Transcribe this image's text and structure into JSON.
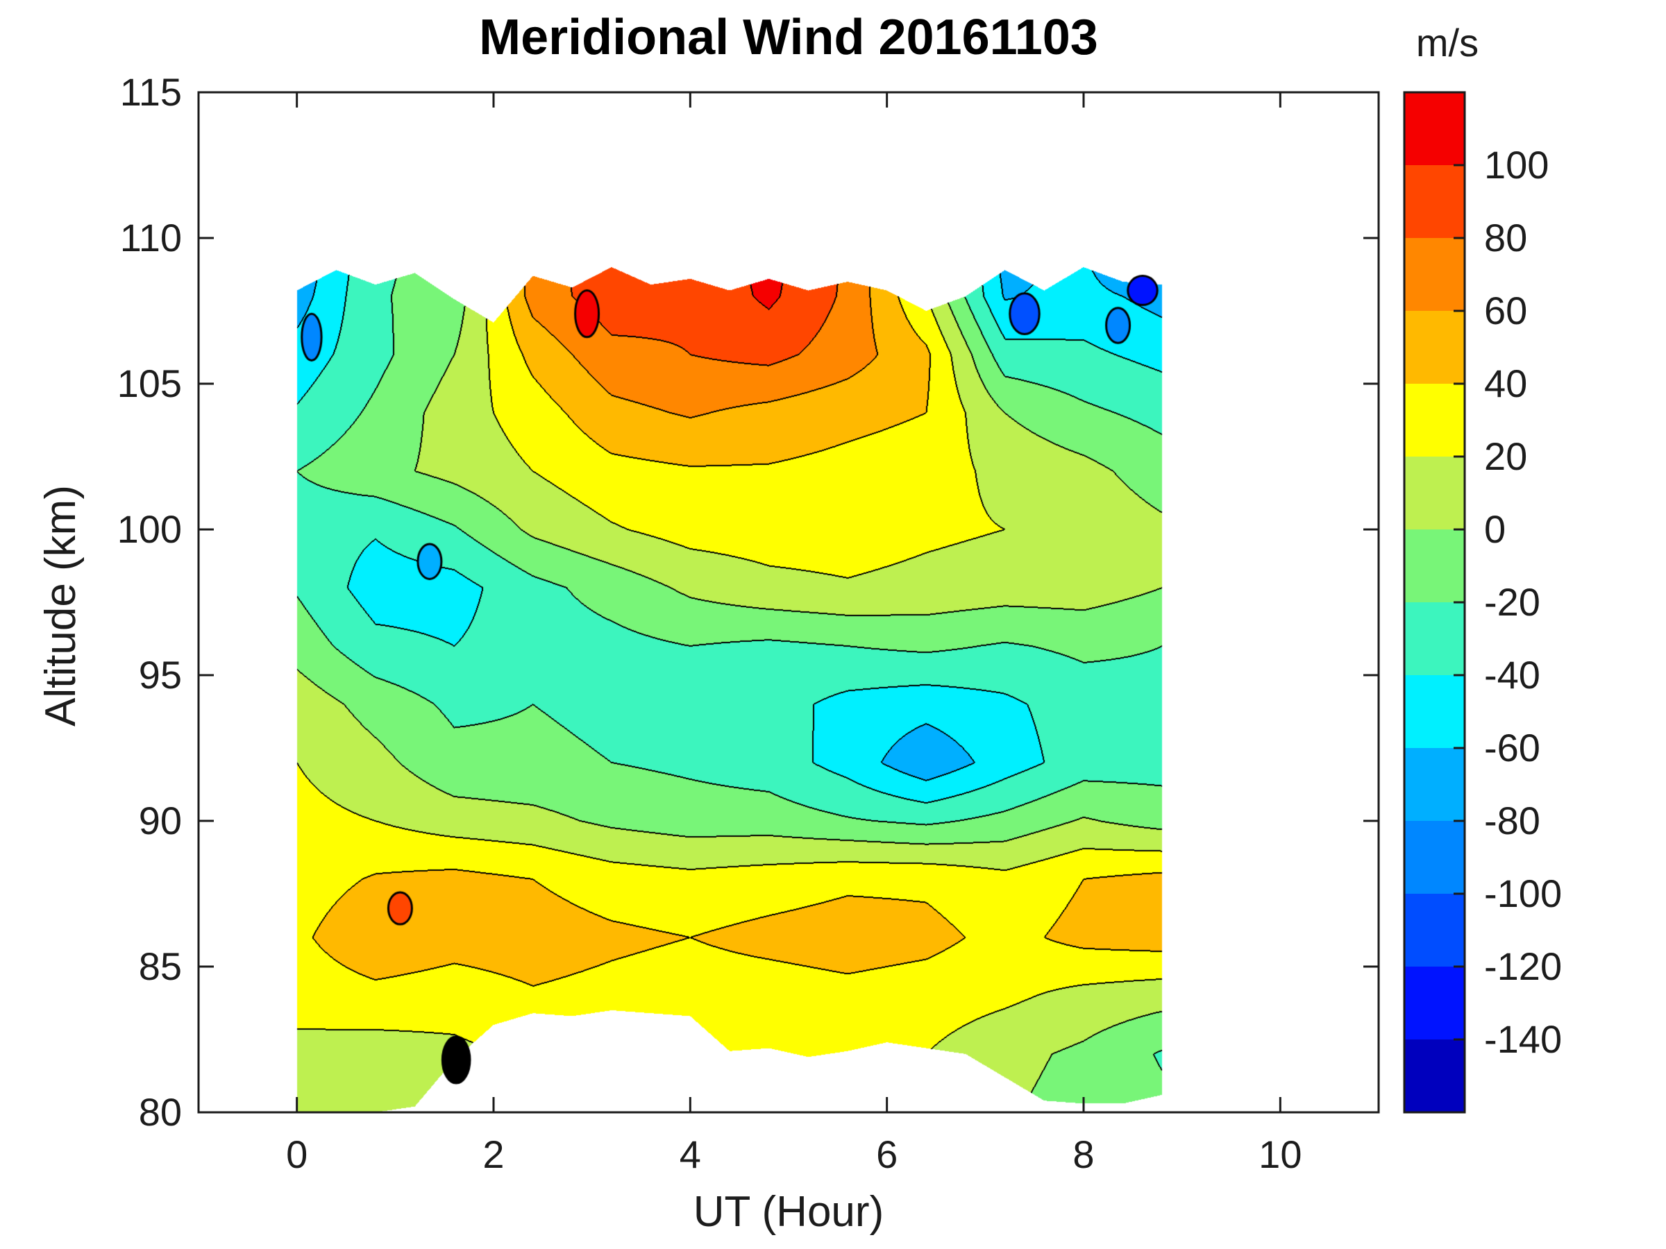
{
  "title": "Meridional Wind 20161103",
  "axes": {
    "x": {
      "label": "UT (Hour)",
      "ticks": [
        0,
        2,
        4,
        6,
        8,
        10
      ],
      "range": [
        -1,
        11
      ]
    },
    "y": {
      "label": "Altitude (km)",
      "ticks": [
        80,
        85,
        90,
        95,
        100,
        105,
        110,
        115
      ],
      "range": [
        80,
        115
      ]
    }
  },
  "colorbar": {
    "unit": "m/s",
    "ticks": [
      100,
      80,
      60,
      40,
      20,
      0,
      -20,
      -40,
      -60,
      -80,
      -100,
      -120,
      -140
    ],
    "range": [
      -160,
      120
    ]
  },
  "chart_data": {
    "type": "heatmap",
    "variant": "filled_contour",
    "title": "Meridional Wind 20161103",
    "xlabel": "UT (Hour)",
    "ylabel": "Altitude (km)",
    "xlim": [
      -1,
      11
    ],
    "ylim": [
      80,
      115
    ],
    "legend_position": "right-colorbar",
    "grid_lines": false,
    "contour_line_color": "#000000",
    "levels": [
      -160,
      -140,
      -120,
      -100,
      -80,
      -60,
      -40,
      -20,
      0,
      20,
      40,
      60,
      80,
      100,
      120
    ],
    "level_colors_bottom_to_top": [
      "#0000BE",
      "#0013FF",
      "#004DFF",
      "#0087FF",
      "#00AFFF",
      "#00F0FF",
      "#3CF5BE",
      "#78F578",
      "#BEF050",
      "#FFFF00",
      "#FFB900",
      "#FF8700",
      "#FF4600",
      "#F50000"
    ],
    "grid": {
      "hours": [
        0,
        0.8,
        1.6,
        2.4,
        3.2,
        4.0,
        4.8,
        5.6,
        6.4,
        7.2,
        8.0,
        8.8
      ],
      "altitudes_km": [
        80,
        82,
        84,
        86,
        88,
        90,
        92,
        94,
        96,
        98,
        100,
        102,
        104,
        106,
        108,
        110
      ],
      "wind_ms": [
        [
          18,
          12,
          10,
          18,
          20,
          20,
          22,
          20,
          15,
          2,
          -8,
          -15
        ],
        [
          14,
          10,
          15,
          24,
          26,
          22,
          30,
          24,
          20,
          6,
          -4,
          -22
        ],
        [
          28,
          34,
          30,
          38,
          34,
          30,
          30,
          34,
          30,
          24,
          14,
          8
        ],
        [
          36,
          56,
          48,
          50,
          44,
          40,
          46,
          50,
          46,
          34,
          46,
          50
        ],
        [
          30,
          42,
          46,
          40,
          30,
          26,
          30,
          36,
          36,
          26,
          40,
          46
        ],
        [
          26,
          20,
          10,
          6,
          -4,
          -10,
          -10,
          -18,
          -24,
          -14,
          2,
          -8
        ],
        [
          20,
          6,
          -14,
          -16,
          -20,
          -24,
          -30,
          -48,
          -76,
          -50,
          -30,
          -28
        ],
        [
          12,
          -8,
          -24,
          -20,
          -24,
          -20,
          -32,
          -46,
          -52,
          -44,
          -30,
          -26
        ],
        [
          -8,
          -34,
          -40,
          -30,
          -26,
          -20,
          -24,
          -20,
          -16,
          -22,
          -16,
          -20
        ],
        [
          -22,
          -50,
          -48,
          -26,
          -12,
          4,
          14,
          18,
          14,
          10,
          10,
          0
        ],
        [
          -30,
          -38,
          -22,
          4,
          18,
          28,
          30,
          30,
          24,
          20,
          14,
          4
        ],
        [
          -20,
          -6,
          6,
          20,
          34,
          38,
          38,
          34,
          30,
          14,
          6,
          -10
        ],
        [
          -38,
          -16,
          10,
          30,
          54,
          62,
          54,
          46,
          40,
          0,
          -16,
          -26
        ],
        [
          -52,
          -26,
          0,
          46,
          74,
          80,
          86,
          70,
          44,
          -32,
          -36,
          -46
        ],
        [
          -70,
          -22,
          -12,
          68,
          92,
          84,
          104,
          76,
          20,
          -62,
          -52,
          -68
        ],
        [
          -80,
          -24,
          -14,
          70,
          95,
          85,
          108,
          78,
          15,
          -70,
          -60,
          -130
        ]
      ]
    },
    "data_extent": {
      "hour_min": 0,
      "hour_max": 8.8
    },
    "envelope": {
      "hours": [
        0,
        0.4,
        0.8,
        1.2,
        1.6,
        2,
        2.4,
        2.8,
        3.2,
        3.6,
        4,
        4.4,
        4.8,
        5.2,
        5.6,
        6,
        6.4,
        6.8,
        7.2,
        7.6,
        8,
        8.4,
        8.8
      ],
      "alt_top_km": [
        108.2,
        108.9,
        108.4,
        108.8,
        107.9,
        107.1,
        108.7,
        108.3,
        109,
        108.4,
        108.6,
        108.2,
        108.6,
        108.2,
        108.5,
        108.2,
        107.5,
        108,
        108.9,
        108.2,
        109,
        108.5,
        108.4
      ],
      "alt_bottom_km": [
        80,
        80,
        80,
        80.2,
        81.8,
        83,
        83.4,
        83.3,
        83.5,
        83.4,
        83.3,
        82.1,
        82.2,
        81.9,
        82.1,
        82.4,
        82.2,
        82,
        81.2,
        80.4,
        80.3,
        80.3,
        80.6
      ]
    },
    "features": [
      {
        "hour": 1.62,
        "alt_km": 81.8,
        "rx_hours": 0.14,
        "ry_km": 0.8,
        "color": "#000000",
        "note": "dark dense-contour patch at lower data edge"
      },
      {
        "hour": 1.05,
        "alt_km": 87.0,
        "rx_hours": 0.12,
        "ry_km": 0.55,
        "color": "#FF4600",
        "note": "strong positive cell"
      },
      {
        "hour": 1.35,
        "alt_km": 98.9,
        "rx_hours": 0.12,
        "ry_km": 0.6,
        "color": "#00AFFF",
        "note": "strong negative core"
      },
      {
        "hour": 2.95,
        "alt_km": 107.4,
        "rx_hours": 0.12,
        "ry_km": 0.8,
        "color": "#F50000",
        "note": "strong positive spike"
      },
      {
        "hour": 7.4,
        "alt_km": 107.4,
        "rx_hours": 0.15,
        "ry_km": 0.7,
        "color": "#0050FF",
        "note": "deep negative spot"
      },
      {
        "hour": 8.35,
        "alt_km": 107.0,
        "rx_hours": 0.12,
        "ry_km": 0.6,
        "color": "#0087FF",
        "note": "negative spot"
      },
      {
        "hour": 8.6,
        "alt_km": 108.2,
        "rx_hours": 0.15,
        "ry_km": 0.5,
        "color": "#0013FF",
        "note": "deep negative spot"
      },
      {
        "hour": 0.15,
        "alt_km": 106.6,
        "rx_hours": 0.1,
        "ry_km": 0.8,
        "color": "#0087FF",
        "note": "negative sliver at left edge"
      }
    ]
  }
}
